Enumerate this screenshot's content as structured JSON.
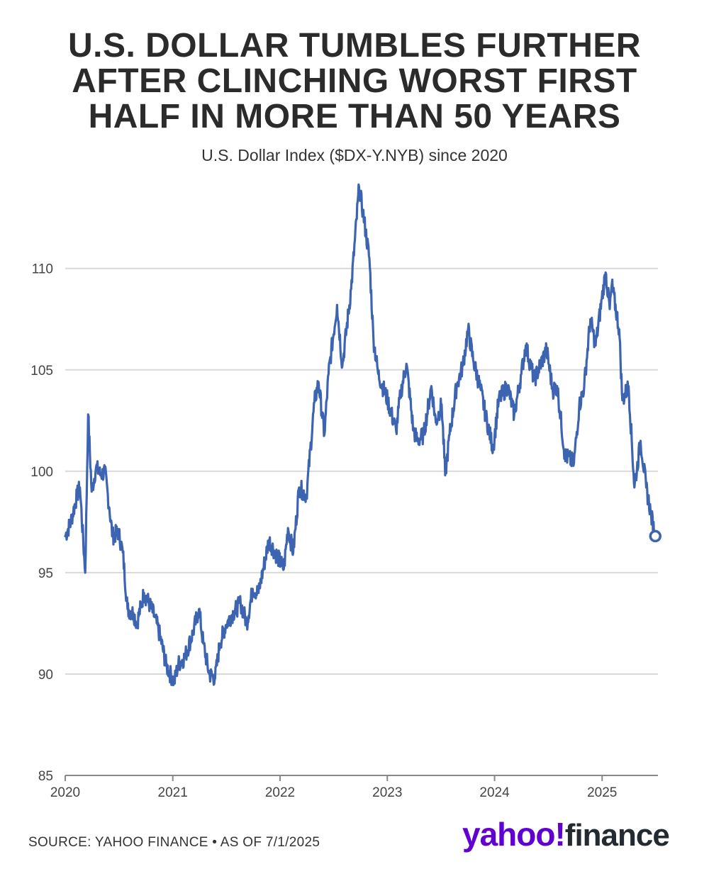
{
  "title_lines": [
    "U.S. DOLLAR TUMBLES FURTHER",
    "AFTER CLINCHING WORST FIRST",
    "HALF IN MORE THAN 50 YEARS"
  ],
  "subtitle": "U.S. Dollar Index ($DX-Y.NYB) since 2020",
  "source": "SOURCE: YAHOO FINANCE • AS OF 7/1/2025",
  "logo": {
    "yahoo": "yahoo",
    "bang": "!",
    "finance": "finance"
  },
  "colors": {
    "line": "#3c64b1",
    "grid": "#d9d9d9",
    "axis": "#888888",
    "logo_purple": "#6001d2"
  },
  "chart_data": {
    "type": "line",
    "title": "U.S. DOLLAR TUMBLES FURTHER AFTER CLINCHING WORST FIRST HALF IN MORE THAN 50 YEARS",
    "subtitle": "U.S. Dollar Index ($DX-Y.NYB) since 2020",
    "xlabel": "",
    "ylabel": "",
    "x_ticks": [
      "2020",
      "2021",
      "2022",
      "2023",
      "2024",
      "2025"
    ],
    "y_ticks": [
      85,
      90,
      95,
      100,
      105,
      110
    ],
    "xlim": [
      "2020-01-01",
      "2025-07-10"
    ],
    "ylim": [
      85,
      114.5
    ],
    "grid": "horizontal",
    "series": [
      {
        "x": [
          "2020-01-01",
          "2020-01-20",
          "2020-02-10",
          "2020-02-20",
          "2020-03-09",
          "2020-03-19",
          "2020-03-31",
          "2020-04-15",
          "2020-05-01",
          "2020-05-15",
          "2020-05-30",
          "2020-06-10",
          "2020-06-30",
          "2020-07-15",
          "2020-07-31",
          "2020-08-20",
          "2020-09-01",
          "2020-09-25",
          "2020-10-15",
          "2020-11-01",
          "2020-11-20",
          "2020-12-10",
          "2021-01-06",
          "2021-01-20",
          "2021-02-10",
          "2021-03-10",
          "2021-03-31",
          "2021-04-15",
          "2021-05-05",
          "2021-05-25",
          "2021-06-10",
          "2021-06-30",
          "2021-07-20",
          "2021-08-20",
          "2021-09-10",
          "2021-09-30",
          "2021-10-20",
          "2021-11-24",
          "2021-12-15",
          "2022-01-14",
          "2022-01-28",
          "2022-02-15",
          "2022-03-07",
          "2022-04-01",
          "2022-04-28",
          "2022-05-12",
          "2022-06-01",
          "2022-06-15",
          "2022-07-14",
          "2022-08-01",
          "2022-08-31",
          "2022-09-27",
          "2022-10-10",
          "2022-11-01",
          "2022-11-15",
          "2022-12-01",
          "2023-01-02",
          "2023-01-31",
          "2023-02-15",
          "2023-03-07",
          "2023-03-31",
          "2023-04-14",
          "2023-05-05",
          "2023-05-31",
          "2023-06-15",
          "2023-07-05",
          "2023-07-17",
          "2023-08-01",
          "2023-08-25",
          "2023-09-15",
          "2023-10-03",
          "2023-10-20",
          "2023-11-15",
          "2023-12-01",
          "2023-12-27",
          "2024-01-15",
          "2024-02-14",
          "2024-03-08",
          "2024-04-01",
          "2024-04-16",
          "2024-05-15",
          "2024-06-26",
          "2024-07-17",
          "2024-08-01",
          "2024-08-27",
          "2024-09-27",
          "2024-10-15",
          "2024-11-01",
          "2024-11-22",
          "2024-12-10",
          "2024-12-31",
          "2025-01-13",
          "2025-01-27",
          "2025-02-03",
          "2025-02-28",
          "2025-03-11",
          "2025-04-01",
          "2025-04-21",
          "2025-05-12",
          "2025-05-31",
          "2025-06-15",
          "2025-06-30",
          "2025-07-01"
        ],
        "y": [
          96.8,
          97.5,
          98.8,
          99.2,
          95.0,
          102.8,
          99.0,
          100.2,
          99.8,
          100.0,
          98.2,
          96.8,
          97.0,
          96.0,
          93.2,
          93.0,
          92.5,
          94.0,
          93.4,
          92.8,
          91.8,
          90.4,
          89.6,
          90.5,
          90.8,
          92.0,
          93.2,
          91.5,
          90.0,
          89.8,
          91.5,
          92.4,
          92.9,
          93.5,
          92.5,
          94.2,
          94.0,
          96.6,
          96.0,
          95.2,
          97.2,
          96.0,
          99.2,
          98.8,
          103.4,
          104.4,
          101.8,
          104.8,
          108.2,
          105.2,
          109.0,
          114.0,
          112.8,
          110.5,
          106.5,
          104.8,
          103.5,
          102.0,
          103.8,
          105.3,
          102.0,
          101.5,
          101.8,
          104.2,
          102.4,
          103.3,
          99.8,
          101.8,
          104.2,
          105.2,
          107.0,
          105.5,
          104.0,
          102.8,
          101.1,
          103.5,
          104.2,
          102.8,
          104.8,
          106.2,
          104.5,
          106.0,
          104.0,
          104.2,
          100.8,
          100.4,
          103.2,
          104.2,
          107.5,
          106.2,
          108.5,
          109.8,
          108.0,
          109.2,
          107.0,
          103.5,
          104.2,
          99.2,
          101.5,
          99.2,
          98.0,
          96.8,
          96.8
        ]
      }
    ],
    "last_point_marker": "hollow-circle"
  }
}
